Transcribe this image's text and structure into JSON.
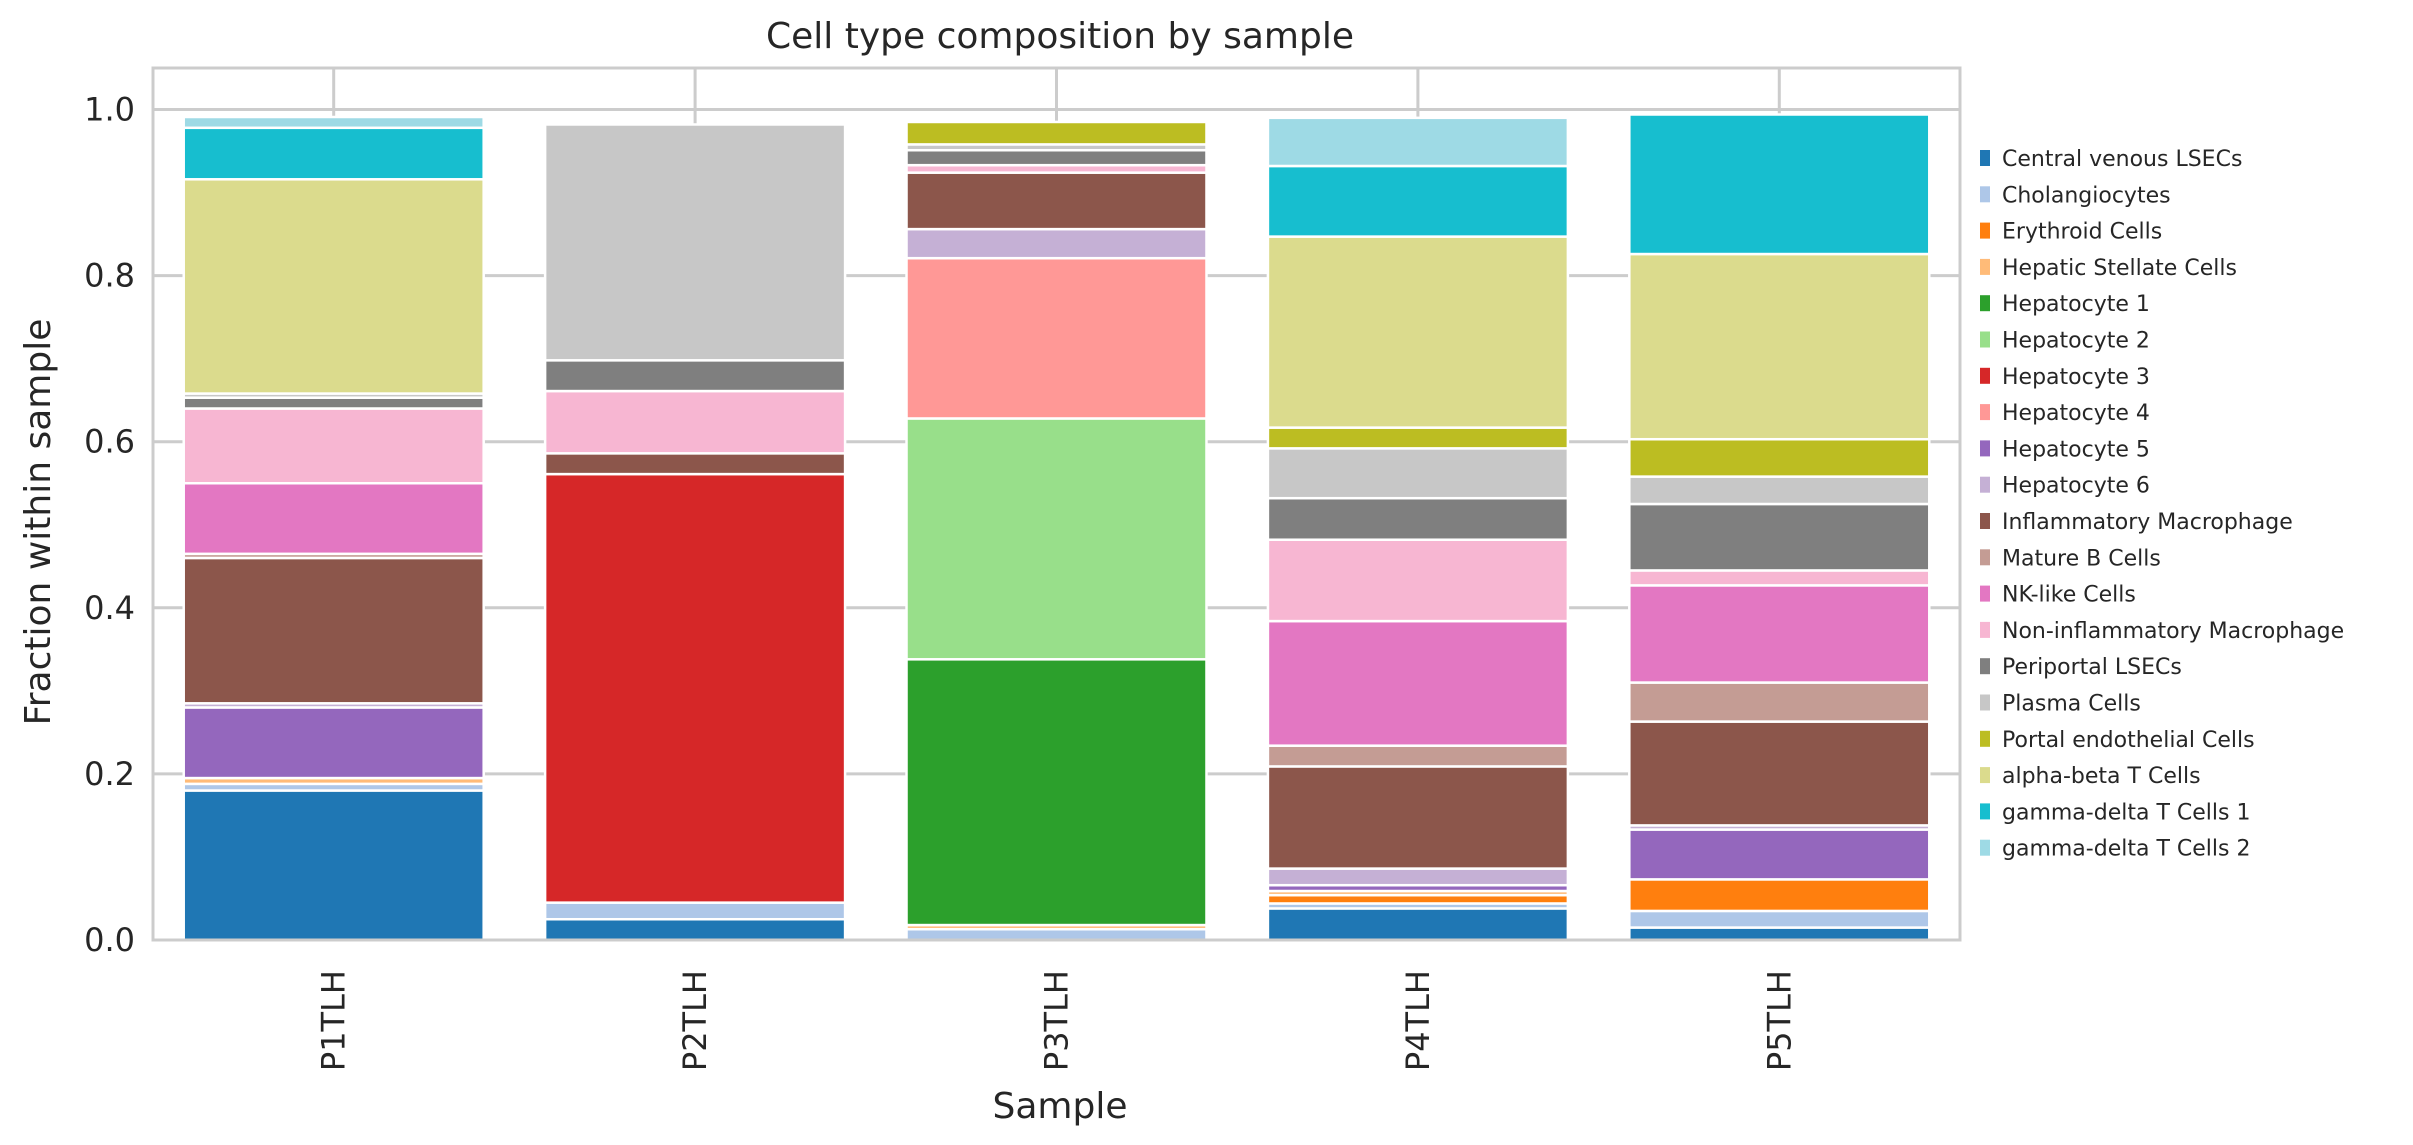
{
  "chart_data": {
    "type": "bar",
    "stacked": true,
    "title": "Cell type composition by sample",
    "xlabel": "Sample",
    "ylabel": "Fraction within sample",
    "ylim": [
      0,
      1.05
    ],
    "yticks": [
      "0.0",
      "0.2",
      "0.4",
      "0.6",
      "0.8",
      "1.0"
    ],
    "grid": true,
    "legend_position": "right",
    "categories": [
      "P1TLH",
      "P2TLH",
      "P3TLH",
      "P4TLH",
      "P5TLH"
    ],
    "series": [
      {
        "name": "Central venous LSECs",
        "color": "#1f77b4",
        "values": [
          0.18,
          0.025,
          0.0,
          0.038,
          0.015
        ]
      },
      {
        "name": "Cholangiocytes",
        "color": "#aec7e8",
        "values": [
          0.008,
          0.02,
          0.013,
          0.006,
          0.02
        ]
      },
      {
        "name": "Erythroid Cells",
        "color": "#ff7f0e",
        "values": [
          0.0,
          0.0,
          0.0,
          0.01,
          0.038
        ]
      },
      {
        "name": "Hepatic Stellate Cells",
        "color": "#ffbb78",
        "values": [
          0.007,
          0.0,
          0.005,
          0.005,
          0.0
        ]
      },
      {
        "name": "Hepatocyte 1",
        "color": "#2ca02c",
        "values": [
          0.0,
          0.0,
          0.32,
          0.0,
          0.0
        ]
      },
      {
        "name": "Hepatocyte 2",
        "color": "#98df8a",
        "values": [
          0.0,
          0.0,
          0.29,
          0.0,
          0.0
        ]
      },
      {
        "name": "Hepatocyte 3",
        "color": "#d62728",
        "values": [
          0.0,
          0.516,
          0.0,
          0.0,
          0.0
        ]
      },
      {
        "name": "Hepatocyte 4",
        "color": "#ff9896",
        "values": [
          0.0,
          0.0,
          0.193,
          0.0,
          0.0
        ]
      },
      {
        "name": "Hepatocyte 5",
        "color": "#9467bd",
        "values": [
          0.085,
          0.0,
          0.0,
          0.007,
          0.06
        ]
      },
      {
        "name": "Hepatocyte 6",
        "color": "#c5b0d5",
        "values": [
          0.005,
          0.0,
          0.035,
          0.02,
          0.005
        ]
      },
      {
        "name": "Inflammatory Macrophage",
        "color": "#8c564b",
        "values": [
          0.175,
          0.025,
          0.068,
          0.123,
          0.125
        ]
      },
      {
        "name": "Mature B Cells",
        "color": "#c49c94",
        "values": [
          0.005,
          0.0,
          0.0,
          0.025,
          0.047
        ]
      },
      {
        "name": "NK-like Cells",
        "color": "#e377c2",
        "values": [
          0.085,
          0.0,
          0.0,
          0.15,
          0.117
        ]
      },
      {
        "name": "Non-inflammatory Macrophage",
        "color": "#f7b6d2",
        "values": [
          0.09,
          0.075,
          0.009,
          0.098,
          0.018
        ]
      },
      {
        "name": "Periportal LSECs",
        "color": "#7f7f7f",
        "values": [
          0.013,
          0.037,
          0.018,
          0.05,
          0.08
        ]
      },
      {
        "name": "Plasma Cells",
        "color": "#c7c7c7",
        "values": [
          0.005,
          0.284,
          0.007,
          0.06,
          0.033
        ]
      },
      {
        "name": "Portal endothelial Cells",
        "color": "#bcbd22",
        "values": [
          0.0,
          0.0,
          0.027,
          0.025,
          0.045
        ]
      },
      {
        "name": "alpha-beta T Cells",
        "color": "#dbdb8d",
        "values": [
          0.258,
          0.0,
          0.0,
          0.23,
          0.223
        ]
      },
      {
        "name": "gamma-delta T Cells 1",
        "color": "#17becf",
        "values": [
          0.062,
          0.0,
          0.0,
          0.085,
          0.168
        ]
      },
      {
        "name": "gamma-delta T Cells 2",
        "color": "#9edae5",
        "values": [
          0.013,
          0.0,
          0.0,
          0.058,
          0.0
        ]
      }
    ]
  }
}
